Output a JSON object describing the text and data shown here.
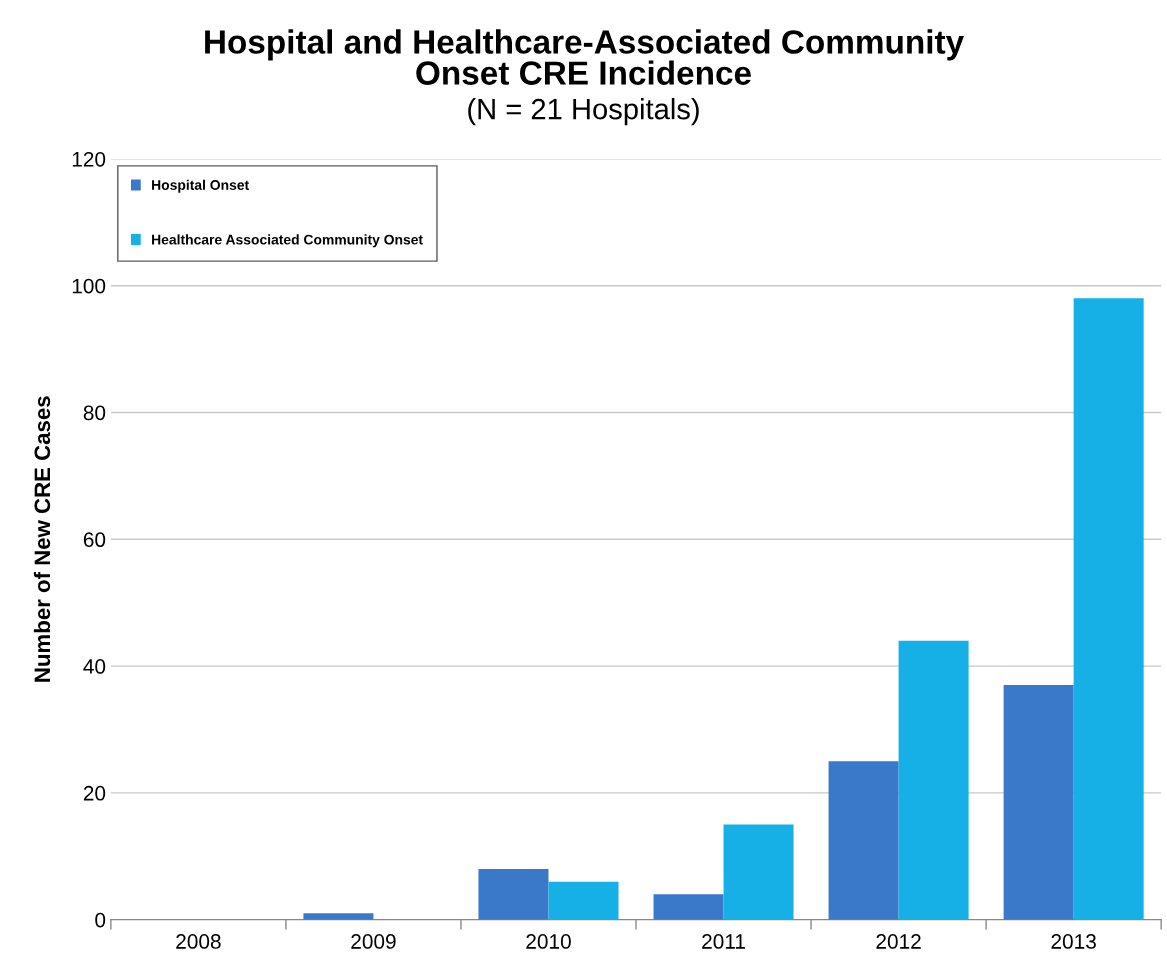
{
  "chart_data": {
    "type": "bar",
    "title": "Hospital and Healthcare-Associated Community\nOnset CRE Incidence",
    "subtitle": "(N = 21 Hospitals)",
    "ylabel": "Number of New CRE Cases",
    "categories": [
      "2008",
      "2009",
      "2010",
      "2011",
      "2012",
      "2013"
    ],
    "series": [
      {
        "name": "Hospital Onset",
        "color": "#3a78c9",
        "values": [
          0,
          1,
          8,
          4,
          25,
          37
        ]
      },
      {
        "name": "Healthcare Associated Community Onset",
        "color": "#17b0e6",
        "values": [
          0,
          0,
          6,
          15,
          44,
          98
        ]
      }
    ],
    "ylim": [
      0,
      120
    ],
    "yticks": [
      0,
      20,
      40,
      60,
      80,
      100,
      120
    ],
    "grid": "y",
    "legend": "top left"
  }
}
